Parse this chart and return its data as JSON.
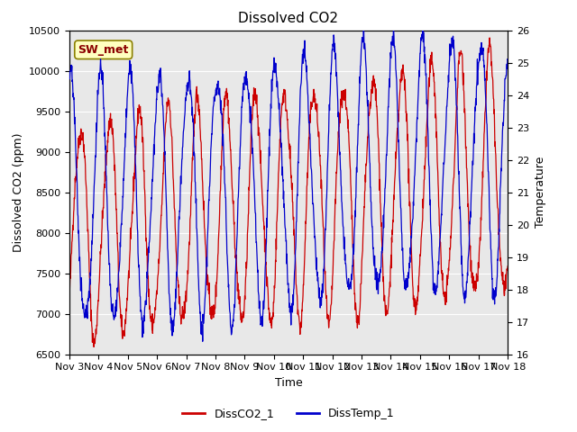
{
  "title": "Dissolved CO2",
  "xlabel": "Time",
  "ylabel_left": "Dissolved CO2 (ppm)",
  "ylabel_right": "Temperature",
  "ylim_left": [
    6500,
    10500
  ],
  "ylim_right": [
    16.0,
    26.0
  ],
  "yticks_left": [
    6500,
    7000,
    7500,
    8000,
    8500,
    9000,
    9500,
    10000,
    10500
  ],
  "yticks_right": [
    16.0,
    17.0,
    18.0,
    19.0,
    20.0,
    21.0,
    22.0,
    23.0,
    24.0,
    25.0,
    26.0
  ],
  "xtick_labels": [
    "Nov 3",
    "Nov 4",
    "Nov 5",
    "Nov 6",
    "Nov 7",
    "Nov 8",
    "Nov 9",
    "Nov 10",
    "Nov 11",
    "Nov 12",
    "Nov 13",
    "Nov 14",
    "Nov 15",
    "Nov 16",
    "Nov 17",
    "Nov 18"
  ],
  "legend_label1": "DissCO2_1",
  "legend_label2": "DissTemp_1",
  "color_co2": "#CC0000",
  "color_temp": "#0000CC",
  "annotation_text": "SW_met",
  "annotation_color": "#8B0000",
  "bg_color": "#E8E8E8",
  "grid_color": "#FFFFFF",
  "n_points": 1500
}
